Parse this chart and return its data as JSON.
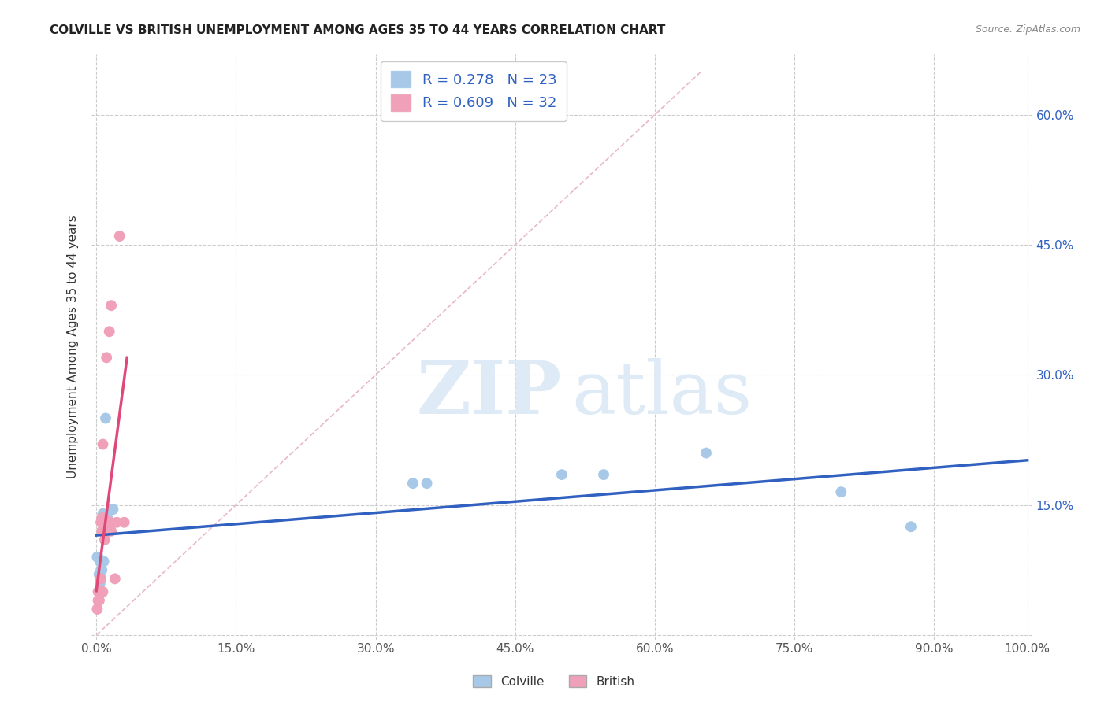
{
  "title": "COLVILLE VS BRITISH UNEMPLOYMENT AMONG AGES 35 TO 44 YEARS CORRELATION CHART",
  "source": "Source: ZipAtlas.com",
  "ylabel": "Unemployment Among Ages 35 to 44 years",
  "colville_R": 0.278,
  "colville_N": 23,
  "british_R": 0.609,
  "british_N": 32,
  "colville_color": "#a8c8e8",
  "british_color": "#f0a0b8",
  "colville_line_color": "#3060c0",
  "british_line_color": "#e04878",
  "diagonal_color": "#e8b8c8",
  "colville_scatter": [
    [
      0.001,
      0.09
    ],
    [
      0.002,
      0.09
    ],
    [
      0.003,
      0.07
    ],
    [
      0.004,
      0.06
    ],
    [
      0.004,
      0.085
    ],
    [
      0.005,
      0.075
    ],
    [
      0.006,
      0.075
    ],
    [
      0.006,
      0.085
    ],
    [
      0.007,
      0.14
    ],
    [
      0.008,
      0.085
    ],
    [
      0.009,
      0.13
    ],
    [
      0.01,
      0.25
    ],
    [
      0.011,
      0.13
    ],
    [
      0.012,
      0.135
    ],
    [
      0.016,
      0.145
    ],
    [
      0.018,
      0.145
    ],
    [
      0.34,
      0.175
    ],
    [
      0.355,
      0.175
    ],
    [
      0.5,
      0.185
    ],
    [
      0.545,
      0.185
    ],
    [
      0.655,
      0.21
    ],
    [
      0.8,
      0.165
    ],
    [
      0.875,
      0.125
    ]
  ],
  "british_scatter": [
    [
      0.001,
      0.03
    ],
    [
      0.002,
      0.04
    ],
    [
      0.002,
      0.05
    ],
    [
      0.003,
      0.04
    ],
    [
      0.003,
      0.04
    ],
    [
      0.003,
      0.05
    ],
    [
      0.004,
      0.05
    ],
    [
      0.004,
      0.065
    ],
    [
      0.005,
      0.05
    ],
    [
      0.005,
      0.065
    ],
    [
      0.005,
      0.13
    ],
    [
      0.006,
      0.12
    ],
    [
      0.006,
      0.135
    ],
    [
      0.006,
      0.05
    ],
    [
      0.007,
      0.05
    ],
    [
      0.007,
      0.22
    ],
    [
      0.008,
      0.135
    ],
    [
      0.008,
      0.12
    ],
    [
      0.009,
      0.11
    ],
    [
      0.009,
      0.12
    ],
    [
      0.01,
      0.13
    ],
    [
      0.011,
      0.32
    ],
    [
      0.012,
      0.13
    ],
    [
      0.013,
      0.12
    ],
    [
      0.014,
      0.35
    ],
    [
      0.015,
      0.13
    ],
    [
      0.016,
      0.12
    ],
    [
      0.016,
      0.38
    ],
    [
      0.02,
      0.065
    ],
    [
      0.022,
      0.13
    ],
    [
      0.025,
      0.46
    ],
    [
      0.03,
      0.13
    ]
  ],
  "xlim": [
    0.0,
    1.0
  ],
  "ylim": [
    0.0,
    0.65
  ],
  "xtick_positions": [
    0.0,
    0.15,
    0.3,
    0.45,
    0.6,
    0.75,
    0.9,
    1.0
  ],
  "xtick_labels": [
    "0.0%",
    "15.0%",
    "30.0%",
    "45.0%",
    "60.0%",
    "75.0%",
    "90.0%",
    "100.0%"
  ],
  "ytick_positions": [
    0.0,
    0.15,
    0.3,
    0.45,
    0.6
  ],
  "ytick_labels_right": [
    "",
    "15.0%",
    "30.0%",
    "45.0%",
    "60.0%"
  ],
  "background_color": "#ffffff",
  "grid_color": "#cccccc",
  "marker_size": 100
}
